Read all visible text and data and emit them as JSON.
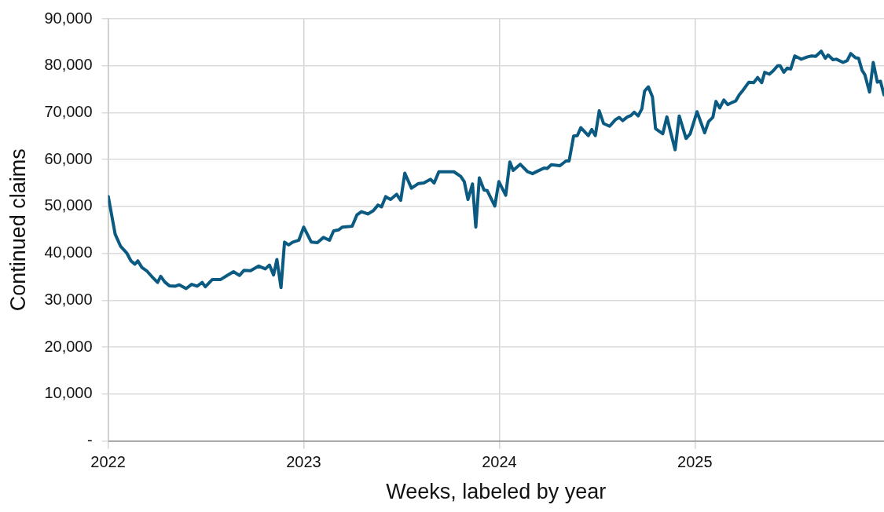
{
  "chart_data": {
    "type": "line",
    "xlabel": "Weeks, labeled by year",
    "ylabel": "Continued claims",
    "xlim": [
      2022,
      2025.967
    ],
    "xticks": [
      2022,
      2023,
      2024,
      2025
    ],
    "ylim": [
      0,
      90000
    ],
    "yticks": [
      {
        "value": 0,
        "label": "-"
      },
      {
        "value": 10000,
        "label": "10,000"
      },
      {
        "value": 20000,
        "label": "20,000"
      },
      {
        "value": 30000,
        "label": "30,000"
      },
      {
        "value": 40000,
        "label": "40,000"
      },
      {
        "value": 50000,
        "label": "50,000"
      },
      {
        "value": 60000,
        "label": "60,000"
      },
      {
        "value": 70000,
        "label": "70,000"
      },
      {
        "value": 80000,
        "label": "80,000"
      },
      {
        "value": 90000,
        "label": "90,000"
      }
    ],
    "grid": true,
    "legend": false,
    "marker": "none",
    "line_style": "solid",
    "series": [
      {
        "color": "#0b5a82",
        "x": [
          2022.001,
          2022.036,
          2022.064,
          2022.095,
          2022.117,
          2022.137,
          2022.152,
          2022.173,
          2022.197,
          2022.225,
          2022.253,
          2022.269,
          2022.29,
          2022.313,
          2022.344,
          2022.364,
          2022.399,
          2022.427,
          2022.455,
          2022.481,
          2022.497,
          2022.532,
          2022.574,
          2022.609,
          2022.641,
          2022.672,
          2022.695,
          2022.728,
          2022.77,
          2022.804,
          2022.825,
          2022.846,
          2022.863,
          2022.884,
          2022.902,
          2022.923,
          2022.944,
          2022.975,
          2023.0,
          2023.039,
          2023.07,
          2023.101,
          2023.132,
          2023.153,
          2023.178,
          2023.198,
          2023.23,
          2023.248,
          2023.272,
          2023.296,
          2023.328,
          2023.356,
          2023.38,
          2023.398,
          2023.419,
          2023.444,
          2023.475,
          2023.496,
          2023.517,
          2023.551,
          2023.587,
          2023.614,
          2023.649,
          2023.667,
          2023.691,
          2023.726,
          2023.768,
          2023.803,
          2023.821,
          2023.84,
          2023.863,
          2023.88,
          2023.898,
          2023.922,
          2023.938,
          2023.977,
          2023.998,
          2024.033,
          2024.054,
          2024.071,
          2024.107,
          2024.145,
          2024.17,
          2024.194,
          2024.229,
          2024.245,
          2024.266,
          2024.31,
          2024.341,
          2024.357,
          2024.38,
          2024.399,
          2024.417,
          2024.455,
          2024.473,
          2024.491,
          2024.511,
          2024.533,
          2024.564,
          2024.594,
          2024.613,
          2024.631,
          2024.655,
          2024.673,
          2024.69,
          2024.71,
          2024.729,
          2024.743,
          2024.762,
          2024.783,
          2024.799,
          2024.836,
          2024.857,
          2024.878,
          2024.899,
          2024.92,
          2024.955,
          2024.976,
          2025.011,
          2025.05,
          2025.07,
          2025.092,
          2025.108,
          2025.127,
          2025.148,
          2025.168,
          2025.192,
          2025.209,
          2025.227,
          2025.241,
          2025.276,
          2025.301,
          2025.321,
          2025.342,
          2025.357,
          2025.381,
          2025.402,
          2025.423,
          2025.436,
          2025.455,
          2025.472,
          2025.49,
          2025.511,
          2025.544,
          2025.576,
          2025.597,
          2025.618,
          2025.646,
          2025.667,
          2025.681,
          2025.706,
          2025.723,
          2025.758,
          2025.779,
          2025.797,
          2025.821,
          2025.837,
          2025.855,
          2025.869,
          2025.893,
          2025.912,
          2025.933,
          2025.949,
          2025.967
        ],
        "values": [
          52100,
          44100,
          41500,
          40100,
          38400,
          37700,
          38400,
          37000,
          36300,
          35000,
          33800,
          35100,
          33900,
          33100,
          33000,
          33300,
          32500,
          33400,
          33000,
          33800,
          32900,
          34400,
          34400,
          35300,
          36100,
          35300,
          36400,
          36300,
          37300,
          36700,
          37500,
          35400,
          38700,
          32700,
          42400,
          41800,
          42400,
          42800,
          45600,
          42400,
          42300,
          43400,
          42800,
          44800,
          45000,
          45600,
          45700,
          45800,
          48200,
          48900,
          48400,
          49100,
          50300,
          49900,
          52100,
          51500,
          52600,
          51300,
          57100,
          53900,
          54900,
          55000,
          55800,
          55000,
          57400,
          57400,
          57400,
          56400,
          55300,
          51500,
          54800,
          45600,
          56100,
          53500,
          53400,
          50100,
          55300,
          52400,
          59500,
          57700,
          59000,
          57400,
          57000,
          57500,
          58200,
          58100,
          58900,
          58700,
          59700,
          59700,
          65000,
          65100,
          66800,
          65100,
          66400,
          65100,
          70400,
          67700,
          67100,
          68500,
          69000,
          68300,
          69100,
          69400,
          70100,
          69300,
          70800,
          74600,
          75500,
          73400,
          66600,
          65500,
          69100,
          65500,
          62100,
          69300,
          64500,
          65500,
          70200,
          65700,
          68100,
          69000,
          72400,
          71000,
          72700,
          71700,
          72200,
          72500,
          73800,
          74500,
          76500,
          76400,
          77500,
          76400,
          78600,
          78200,
          79000,
          80000,
          80000,
          78600,
          79500,
          79300,
          82100,
          81400,
          81900,
          82100,
          82000,
          83100,
          81600,
          82300,
          81300,
          81400,
          80700,
          81100,
          82600,
          81700,
          81600,
          79000,
          78100,
          74400,
          80700,
          76500,
          76700,
          73800
        ]
      }
    ]
  }
}
